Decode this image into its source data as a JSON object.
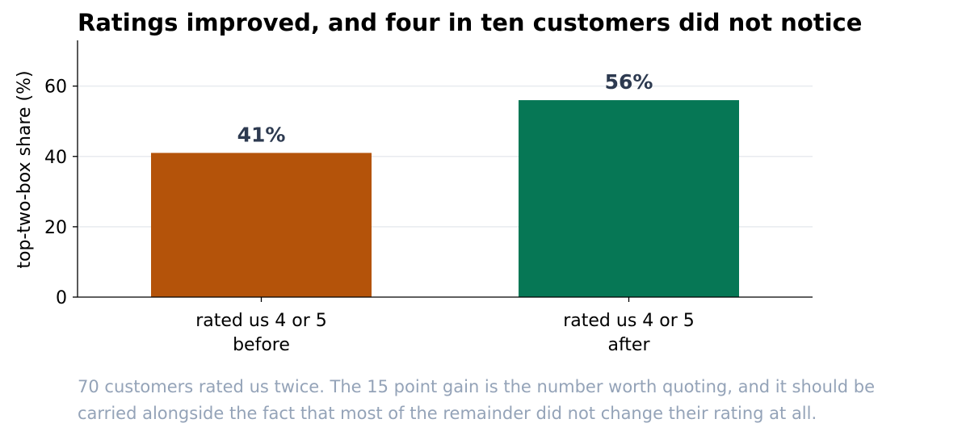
{
  "chart_data": {
    "type": "bar",
    "title": "Ratings improved, and four in ten customers did not notice",
    "xlabel": "",
    "ylabel": "top-two-box share (%)",
    "categories": [
      [
        "rated us 4 or 5",
        "before"
      ],
      [
        "rated us 4 or 5",
        "after"
      ]
    ],
    "values": [
      41,
      56
    ],
    "data_labels": [
      "41%",
      "56%"
    ],
    "bar_colors": [
      "#b4530a",
      "#067755"
    ],
    "ylim": [
      0,
      73
    ],
    "yticks": [
      0,
      20,
      40,
      60
    ],
    "grid": true,
    "caption": [
      "70 customers rated us twice. The 15 point gain is the number worth quoting, and it should be",
      "carried alongside the fact that most of the remainder did not change their rating at all."
    ]
  }
}
